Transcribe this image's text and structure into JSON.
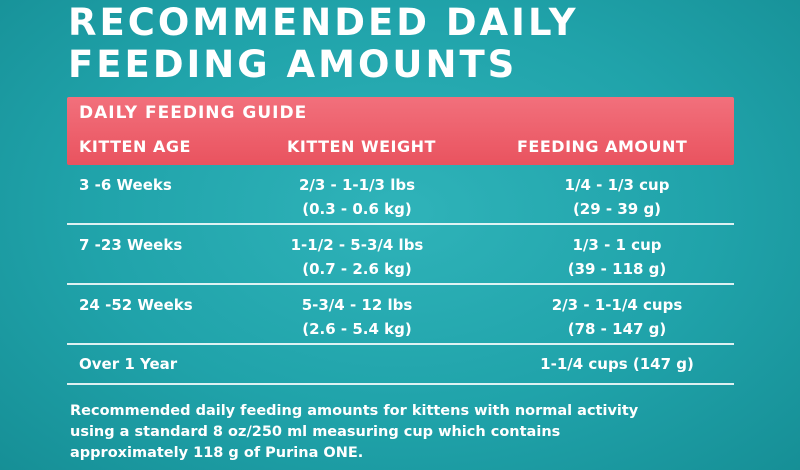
{
  "title": {
    "line1": "RECOMMENDED DAILY",
    "line2": "FEEDING AMOUNTS"
  },
  "guide": {
    "title": "DAILY FEEDING GUIDE",
    "columns": [
      "KITTEN AGE",
      "KITTEN WEIGHT",
      "FEEDING AMOUNT"
    ],
    "rows": [
      {
        "age": "3 -6 Weeks",
        "weight": [
          "2/3 - 1-1/3 lbs",
          "(0.3 - 0.6 kg)"
        ],
        "amount": [
          "1/4 - 1/3 cup",
          "(29 - 39 g)"
        ]
      },
      {
        "age": "7 -23 Weeks",
        "weight": [
          "1-1/2 - 5-3/4 lbs",
          "(0.7 - 2.6 kg)"
        ],
        "amount": [
          "1/3 - 1 cup",
          "(39 - 118 g)"
        ]
      },
      {
        "age": "24 -52 Weeks",
        "weight": [
          "5-3/4 - 12 lbs",
          "(2.6 - 5.4 kg)"
        ],
        "amount": [
          "2/3 - 1-1/4 cups",
          "(78 - 147 g)"
        ]
      },
      {
        "age": "Over 1 Year",
        "weight": [
          "",
          ""
        ],
        "amount": [
          "1-1/4 cups (147 g)",
          ""
        ]
      }
    ]
  },
  "note": {
    "lines": [
      "Recommended daily feeding amounts for kittens with normal activity",
      "using a standard 8 oz/250 ml measuring cup which contains",
      "approximately 118 g of Purina ONE."
    ]
  }
}
